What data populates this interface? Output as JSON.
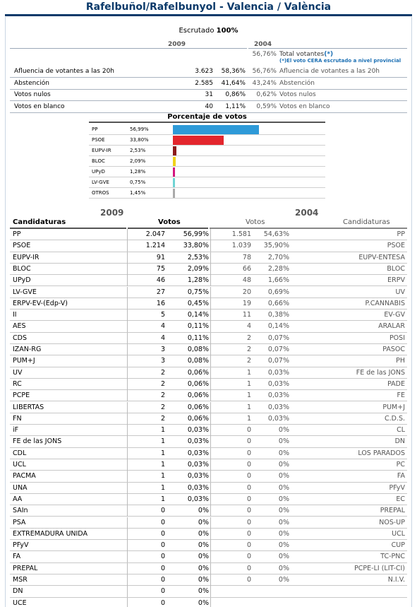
{
  "header": {
    "title": "Rafelbuñol/Rafelbunyol - Valencia / València"
  },
  "escrutado": {
    "label": "Escrutado",
    "value": "100%"
  },
  "summary": {
    "year_2009": "2009",
    "year_2004": "2004",
    "total_votantes": {
      "pct_2004": "56,76%",
      "label": "Total votantes",
      "star": "(*)"
    },
    "cera_note": "(*)El voto CERA escrutado a nivel provincial",
    "rows": [
      {
        "label": "Afluencia de votantes a las 20h",
        "num_2009": "3.623",
        "pct_2009": "58,36%",
        "pct_2004": "56,76%",
        "label_2004": "Afluencia de votantes a las 20h"
      },
      {
        "label": "Abstención",
        "num_2009": "2.585",
        "pct_2009": "41,64%",
        "pct_2004": "43,24%",
        "label_2004": "Abstención"
      },
      {
        "label": "Votos nulos",
        "num_2009": "31",
        "pct_2009": "0,86%",
        "pct_2004": "0,62%",
        "label_2004": "Votos nulos"
      },
      {
        "label": "Votos en blanco",
        "num_2009": "40",
        "pct_2009": "1,11%",
        "pct_2004": "0,59%",
        "label_2004": "Votos en blanco"
      }
    ]
  },
  "vote_chart": {
    "title": "Porcentaje de votos",
    "bars": [
      {
        "party": "PP",
        "pct_label": "56,99%",
        "value": 56.99,
        "color": "#2e9ad8"
      },
      {
        "party": "PSOE",
        "pct_label": "33,80%",
        "value": 33.8,
        "color": "#e3262d"
      },
      {
        "party": "EUPV-IR",
        "pct_label": "2,53%",
        "value": 2.53,
        "color": "#8b1a1a"
      },
      {
        "party": "BLOC",
        "pct_label": "2,09%",
        "value": 2.09,
        "color": "#f0d21a"
      },
      {
        "party": "UPyD",
        "pct_label": "1,28%",
        "value": 1.28,
        "color": "#d4167f"
      },
      {
        "party": "LV-GVE",
        "pct_label": "0,75%",
        "value": 0.75,
        "color": "#6fd4d4"
      },
      {
        "party": "OTROS",
        "pct_label": "1,45%",
        "value": 1.45,
        "color": "#aaaaaa"
      }
    ]
  },
  "results": {
    "year_2009": "2009",
    "year_2004": "2004",
    "col_candidaturas": "Candidaturas",
    "col_votos": "Votos",
    "col_votos_2004": "Votos",
    "col_candidaturas_2004": "Candidaturas",
    "rows": [
      {
        "name": "PP",
        "v9": "2.047",
        "p9": "56,99%",
        "v4": "1.581",
        "p4": "54,63%",
        "n4": "PP"
      },
      {
        "name": "PSOE",
        "v9": "1.214",
        "p9": "33,80%",
        "v4": "1.039",
        "p4": "35,90%",
        "n4": "PSOE"
      },
      {
        "name": "EUPV-IR",
        "v9": "91",
        "p9": "2,53%",
        "v4": "78",
        "p4": "2,70%",
        "n4": "EUPV-ENTESA"
      },
      {
        "name": "BLOC",
        "v9": "75",
        "p9": "2,09%",
        "v4": "66",
        "p4": "2,28%",
        "n4": "BLOC"
      },
      {
        "name": "UPyD",
        "v9": "46",
        "p9": "1,28%",
        "v4": "48",
        "p4": "1,66%",
        "n4": "ERPV"
      },
      {
        "name": "LV-GVE",
        "v9": "27",
        "p9": "0,75%",
        "v4": "20",
        "p4": "0,69%",
        "n4": "UV"
      },
      {
        "name": "ERPV-EV-(Edp-V)",
        "v9": "16",
        "p9": "0,45%",
        "v4": "19",
        "p4": "0,66%",
        "n4": "P.CANNABIS"
      },
      {
        "name": "II",
        "v9": "5",
        "p9": "0,14%",
        "v4": "11",
        "p4": "0,38%",
        "n4": "EV-GV"
      },
      {
        "name": "AES",
        "v9": "4",
        "p9": "0,11%",
        "v4": "4",
        "p4": "0,14%",
        "n4": "ARALAR"
      },
      {
        "name": "CDS",
        "v9": "4",
        "p9": "0,11%",
        "v4": "2",
        "p4": "0,07%",
        "n4": "POSI"
      },
      {
        "name": "IZAN-RG",
        "v9": "3",
        "p9": "0,08%",
        "v4": "2",
        "p4": "0,07%",
        "n4": "PASOC"
      },
      {
        "name": "PUM+J",
        "v9": "3",
        "p9": "0,08%",
        "v4": "2",
        "p4": "0,07%",
        "n4": "PH"
      },
      {
        "name": "UV",
        "v9": "2",
        "p9": "0,06%",
        "v4": "1",
        "p4": "0,03%",
        "n4": "FE de las JONS"
      },
      {
        "name": "RC",
        "v9": "2",
        "p9": "0,06%",
        "v4": "1",
        "p4": "0,03%",
        "n4": "PADE"
      },
      {
        "name": "PCPE",
        "v9": "2",
        "p9": "0,06%",
        "v4": "1",
        "p4": "0,03%",
        "n4": "FE"
      },
      {
        "name": "LIBERTAS",
        "v9": "2",
        "p9": "0,06%",
        "v4": "1",
        "p4": "0,03%",
        "n4": "PUM+J"
      },
      {
        "name": "FN",
        "v9": "2",
        "p9": "0,06%",
        "v4": "1",
        "p4": "0,03%",
        "n4": "C.D.S."
      },
      {
        "name": "iF",
        "v9": "1",
        "p9": "0,03%",
        "v4": "0",
        "p4": "0%",
        "n4": "CL"
      },
      {
        "name": "FE de las JONS",
        "v9": "1",
        "p9": "0,03%",
        "v4": "0",
        "p4": "0%",
        "n4": "DN"
      },
      {
        "name": "CDL",
        "v9": "1",
        "p9": "0,03%",
        "v4": "0",
        "p4": "0%",
        "n4": "LOS PARADOS"
      },
      {
        "name": "UCL",
        "v9": "1",
        "p9": "0,03%",
        "v4": "0",
        "p4": "0%",
        "n4": "PC"
      },
      {
        "name": "PACMA",
        "v9": "1",
        "p9": "0,03%",
        "v4": "0",
        "p4": "0%",
        "n4": "FA"
      },
      {
        "name": "UNA",
        "v9": "1",
        "p9": "0,03%",
        "v4": "0",
        "p4": "0%",
        "n4": "PFyV"
      },
      {
        "name": "AA",
        "v9": "1",
        "p9": "0,03%",
        "v4": "0",
        "p4": "0%",
        "n4": "EC"
      },
      {
        "name": "SAIn",
        "v9": "0",
        "p9": "0%",
        "v4": "0",
        "p4": "0%",
        "n4": "PREPAL"
      },
      {
        "name": "PSA",
        "v9": "0",
        "p9": "0%",
        "v4": "0",
        "p4": "0%",
        "n4": "NOS-UP"
      },
      {
        "name": "EXTREMADURA UNIDA",
        "v9": "0",
        "p9": "0%",
        "v4": "0",
        "p4": "0%",
        "n4": "UCL"
      },
      {
        "name": "PFyV",
        "v9": "0",
        "p9": "0%",
        "v4": "0",
        "p4": "0%",
        "n4": "CUP"
      },
      {
        "name": "FA",
        "v9": "0",
        "p9": "0%",
        "v4": "0",
        "p4": "0%",
        "n4": "TC-PNC"
      },
      {
        "name": "PREPAL",
        "v9": "0",
        "p9": "0%",
        "v4": "0",
        "p4": "0%",
        "n4": "PCPE-LI (LIT-CI)"
      },
      {
        "name": "MSR",
        "v9": "0",
        "p9": "0%",
        "v4": "0",
        "p4": "0%",
        "n4": "N.I.V."
      },
      {
        "name": "DN",
        "v9": "0",
        "p9": "0%",
        "v4": "",
        "p4": "",
        "n4": ""
      },
      {
        "name": "UCE",
        "v9": "0",
        "p9": "0%",
        "v4": "",
        "p4": "",
        "n4": ""
      }
    ]
  }
}
